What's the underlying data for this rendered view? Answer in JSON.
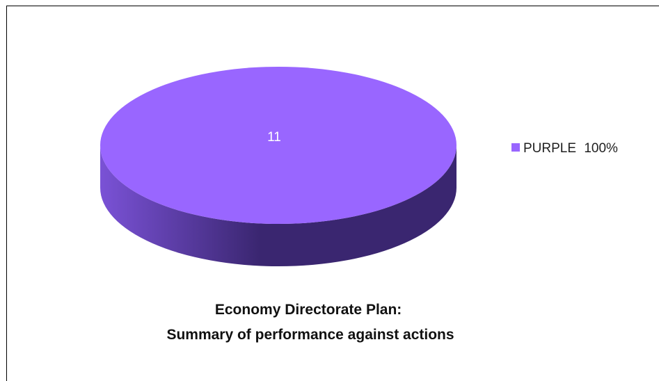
{
  "chart_data": {
    "type": "pie",
    "title_lines": [
      "Economy Directorate Plan:",
      "Summary of performance against actions"
    ],
    "slices": [
      {
        "label": "PURPLE",
        "value": 11,
        "percent": "100%",
        "color": "#9966ff"
      }
    ],
    "legend_placement": "right",
    "colors": {
      "top": "#9966ff",
      "side_light": "#7a52d6",
      "side_dark": "#3a2670"
    }
  }
}
